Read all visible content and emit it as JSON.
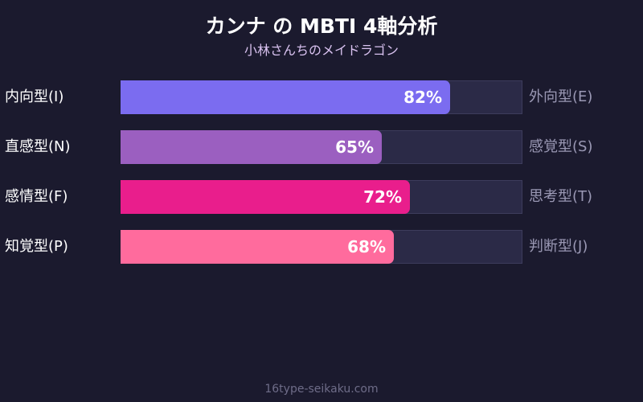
{
  "chart_data": {
    "type": "bar",
    "orientation": "horizontal",
    "title": "カンナ の MBTI 4軸分析",
    "subtitle": "小林さんちのメイドラゴン",
    "xlim": [
      0,
      100
    ],
    "grid": false,
    "rows": [
      {
        "left_label": "内向型(I)",
        "right_label": "外向型(E)",
        "value": 82,
        "value_label": "82%",
        "color": "#7b6cf0"
      },
      {
        "left_label": "直感型(N)",
        "right_label": "感覚型(S)",
        "value": 65,
        "value_label": "65%",
        "color": "#9b5fc0"
      },
      {
        "left_label": "感情型(F)",
        "right_label": "思考型(T)",
        "value": 72,
        "value_label": "72%",
        "color": "#e91e8c"
      },
      {
        "left_label": "知覚型(P)",
        "right_label": "判断型(J)",
        "value": 68,
        "value_label": "68%",
        "color": "#ff6b9d"
      }
    ],
    "track_color": "#2b2a47"
  },
  "footer": "16type-seikaku.com"
}
